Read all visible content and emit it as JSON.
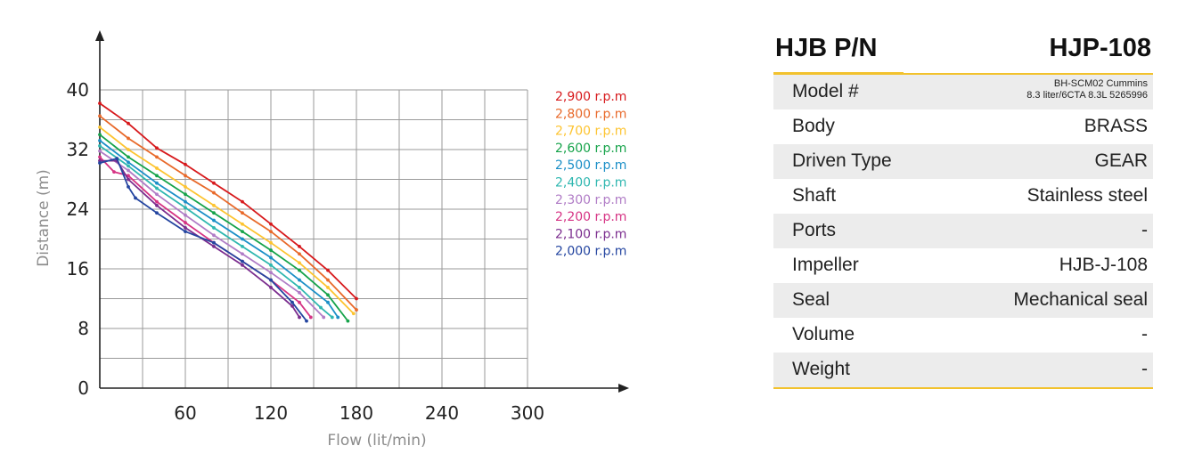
{
  "chart_data": {
    "type": "line",
    "title": "",
    "xlabel": "Flow (lit/min)",
    "ylabel": "Distance (m)",
    "xlim": [
      0,
      300
    ],
    "ylim": [
      0,
      40
    ],
    "x_ticks": [
      "60",
      "120",
      "180",
      "240",
      "300"
    ],
    "y_ticks": [
      "0",
      "8",
      "16",
      "24",
      "32",
      "40"
    ],
    "grid": true,
    "legend_position": "right",
    "series": [
      {
        "name": "2,900 r.p.m",
        "color": "#d7191c",
        "points": [
          [
            0,
            38.2
          ],
          [
            20,
            35.5
          ],
          [
            40,
            32.2
          ],
          [
            60,
            30
          ],
          [
            80,
            27.5
          ],
          [
            100,
            25
          ],
          [
            120,
            22
          ],
          [
            140,
            19
          ],
          [
            160,
            15.8
          ],
          [
            180,
            12
          ]
        ]
      },
      {
        "name": "2,800 r.p.m",
        "color": "#e8692a",
        "points": [
          [
            0,
            36.5
          ],
          [
            20,
            33.5
          ],
          [
            40,
            31
          ],
          [
            60,
            28.5
          ],
          [
            80,
            26.2
          ],
          [
            100,
            23.5
          ],
          [
            120,
            21
          ],
          [
            140,
            18
          ],
          [
            160,
            14.5
          ],
          [
            180,
            10.5
          ]
        ]
      },
      {
        "name": "2,700 r.p.m",
        "color": "#fdc431",
        "points": [
          [
            0,
            35
          ],
          [
            20,
            32
          ],
          [
            40,
            29.5
          ],
          [
            60,
            27
          ],
          [
            80,
            24.5
          ],
          [
            100,
            22
          ],
          [
            120,
            19.5
          ],
          [
            140,
            16.8
          ],
          [
            160,
            13.5
          ],
          [
            178,
            10
          ]
        ]
      },
      {
        "name": "2,600 r.p.m",
        "color": "#16a34a",
        "points": [
          [
            0,
            34
          ],
          [
            20,
            31
          ],
          [
            40,
            28.5
          ],
          [
            60,
            26
          ],
          [
            80,
            23.5
          ],
          [
            100,
            21
          ],
          [
            120,
            18.5
          ],
          [
            140,
            15.8
          ],
          [
            160,
            12.5
          ],
          [
            174,
            9
          ]
        ]
      },
      {
        "name": "2,500 r.p.m",
        "color": "#1b8fc7",
        "points": [
          [
            0,
            33.2
          ],
          [
            20,
            30.3
          ],
          [
            40,
            27.5
          ],
          [
            60,
            25
          ],
          [
            80,
            22.5
          ],
          [
            100,
            20
          ],
          [
            120,
            17.5
          ],
          [
            140,
            14.5
          ],
          [
            160,
            11.5
          ],
          [
            167,
            9.5
          ]
        ]
      },
      {
        "name": "2,400 r.p.m",
        "color": "#2fb7b0",
        "points": [
          [
            0,
            32.5
          ],
          [
            20,
            29.8
          ],
          [
            40,
            26.8
          ],
          [
            60,
            24.2
          ],
          [
            80,
            21.5
          ],
          [
            100,
            19
          ],
          [
            120,
            16.5
          ],
          [
            140,
            13.5
          ],
          [
            155,
            10.8
          ],
          [
            163,
            9.5
          ]
        ]
      },
      {
        "name": "2,300 r.p.m",
        "color": "#b07cc6",
        "points": [
          [
            0,
            31.8
          ],
          [
            20,
            29.2
          ],
          [
            40,
            26
          ],
          [
            60,
            23.2
          ],
          [
            80,
            20.5
          ],
          [
            100,
            18
          ],
          [
            120,
            15.5
          ],
          [
            140,
            12.8
          ],
          [
            157,
            9.5
          ]
        ]
      },
      {
        "name": "2,200 r.p.m",
        "color": "#d63384",
        "points": [
          [
            0,
            31
          ],
          [
            10,
            29
          ],
          [
            20,
            28.5
          ],
          [
            40,
            25
          ],
          [
            60,
            22.2
          ],
          [
            80,
            19.5
          ],
          [
            100,
            17
          ],
          [
            120,
            14.5
          ],
          [
            140,
            11.5
          ],
          [
            148,
            9.5
          ]
        ]
      },
      {
        "name": "2,100 r.p.m",
        "color": "#7b2d8e",
        "points": [
          [
            0,
            30.5
          ],
          [
            12,
            30.5
          ],
          [
            20,
            28
          ],
          [
            40,
            24.5
          ],
          [
            60,
            21.5
          ],
          [
            80,
            19
          ],
          [
            100,
            16.5
          ],
          [
            120,
            13.5
          ],
          [
            135,
            11
          ],
          [
            140,
            9.5
          ]
        ]
      },
      {
        "name": "2,000 r.p.m",
        "color": "#2445a0",
        "points": [
          [
            0,
            30.2
          ],
          [
            12,
            30.8
          ],
          [
            20,
            27
          ],
          [
            25,
            25.5
          ],
          [
            40,
            23.5
          ],
          [
            60,
            21
          ],
          [
            80,
            19.5
          ],
          [
            100,
            17
          ],
          [
            120,
            14.5
          ],
          [
            135,
            11.5
          ],
          [
            145,
            9
          ]
        ]
      }
    ]
  },
  "spec": {
    "header_left": "HJB P/N",
    "header_right": "HJP-108",
    "rows": [
      {
        "label": "Model #",
        "value_line1": "BH-SCM02 Cummins",
        "value_line2": "8.3 liter/6CTA 8.3L 5265996"
      },
      {
        "label": "Body",
        "value": "BRASS"
      },
      {
        "label": "Driven Type",
        "value": "GEAR"
      },
      {
        "label": "Shaft",
        "value": "Stainless steel"
      },
      {
        "label": "Ports",
        "value": "-"
      },
      {
        "label": "Impeller",
        "value": "HJB-J-108"
      },
      {
        "label": "Seal",
        "value": "Mechanical seal"
      },
      {
        "label": "Volume",
        "value": "-"
      },
      {
        "label": "Weight",
        "value": "-"
      }
    ]
  }
}
